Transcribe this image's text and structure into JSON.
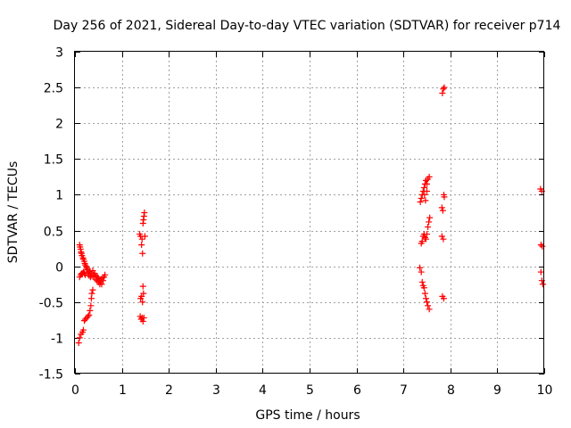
{
  "chart_data": {
    "type": "scatter",
    "title": "Day 256 of 2021, Sidereal Day-to-day VTEC variation (SDTVAR) for receiver p714",
    "xlabel": "GPS time / hours",
    "ylabel": "SDTVAR / TECUs",
    "xlim": [
      0,
      10
    ],
    "ylim": [
      -1.5,
      3
    ],
    "xticks": [
      0,
      1,
      2,
      3,
      4,
      5,
      6,
      7,
      8,
      9,
      10
    ],
    "xtick_labels": [
      "0",
      "1",
      "2",
      "3",
      "4",
      "5",
      "6",
      "7",
      "8",
      "9",
      "10"
    ],
    "yticks": [
      -1.5,
      -1,
      -0.5,
      0,
      0.5,
      1,
      1.5,
      2,
      2.5,
      3
    ],
    "ytick_labels": [
      "-1.5",
      "-1",
      "-0.5",
      "0",
      "0.5",
      "1",
      "1.5",
      "2",
      "2.5",
      "3"
    ],
    "grid": true,
    "marker": "plus",
    "color": "#ff0000",
    "series": [
      {
        "name": "p714",
        "points": [
          [
            0.08,
            -1.07
          ],
          [
            0.1,
            -1.0
          ],
          [
            0.13,
            -0.95
          ],
          [
            0.16,
            -0.92
          ],
          [
            0.18,
            -0.89
          ],
          [
            0.2,
            -0.76
          ],
          [
            0.22,
            -0.74
          ],
          [
            0.25,
            -0.72
          ],
          [
            0.28,
            -0.7
          ],
          [
            0.3,
            -0.68
          ],
          [
            0.32,
            -0.62
          ],
          [
            0.34,
            -0.55
          ],
          [
            0.35,
            -0.45
          ],
          [
            0.36,
            -0.38
          ],
          [
            0.38,
            -0.33
          ],
          [
            0.1,
            0.3
          ],
          [
            0.11,
            0.27
          ],
          [
            0.12,
            0.24
          ],
          [
            0.13,
            0.2
          ],
          [
            0.14,
            0.18
          ],
          [
            0.15,
            0.15
          ],
          [
            0.17,
            0.12
          ],
          [
            0.18,
            0.1
          ],
          [
            0.2,
            0.07
          ],
          [
            0.21,
            0.04
          ],
          [
            0.22,
            0.02
          ],
          [
            0.24,
            0.0
          ],
          [
            0.25,
            -0.02
          ],
          [
            0.27,
            -0.04
          ],
          [
            0.1,
            -0.15
          ],
          [
            0.12,
            -0.12
          ],
          [
            0.14,
            -0.1
          ],
          [
            0.16,
            -0.1
          ],
          [
            0.18,
            -0.08
          ],
          [
            0.2,
            -0.1
          ],
          [
            0.22,
            -0.12
          ],
          [
            0.25,
            -0.05
          ],
          [
            0.28,
            -0.08
          ],
          [
            0.3,
            -0.1
          ],
          [
            0.32,
            -0.07
          ],
          [
            0.35,
            -0.1
          ],
          [
            0.38,
            -0.06
          ],
          [
            0.4,
            -0.12
          ],
          [
            0.42,
            -0.1
          ],
          [
            0.45,
            -0.13
          ],
          [
            0.48,
            -0.15
          ],
          [
            0.5,
            -0.17
          ],
          [
            0.52,
            -0.2
          ],
          [
            0.55,
            -0.22
          ],
          [
            0.57,
            -0.25
          ],
          [
            0.6,
            -0.2
          ],
          [
            0.62,
            -0.15
          ],
          [
            0.64,
            -0.12
          ],
          [
            0.3,
            -0.13
          ],
          [
            0.33,
            -0.15
          ],
          [
            0.36,
            -0.13
          ],
          [
            0.4,
            -0.15
          ],
          [
            0.44,
            -0.18
          ],
          [
            0.47,
            -0.2
          ],
          [
            0.5,
            -0.22
          ],
          [
            0.53,
            -0.25
          ],
          [
            0.56,
            -0.18
          ],
          [
            0.59,
            -0.16
          ],
          [
            1.38,
            0.45
          ],
          [
            1.4,
            0.42
          ],
          [
            1.42,
            0.3
          ],
          [
            1.44,
            0.18
          ],
          [
            1.43,
            0.38
          ],
          [
            1.45,
            0.6
          ],
          [
            1.46,
            0.65
          ],
          [
            1.47,
            0.7
          ],
          [
            1.48,
            0.75
          ],
          [
            1.49,
            0.42
          ],
          [
            1.4,
            -0.45
          ],
          [
            1.42,
            -0.42
          ],
          [
            1.44,
            -0.5
          ],
          [
            1.45,
            -0.28
          ],
          [
            1.46,
            -0.38
          ],
          [
            1.39,
            -0.7
          ],
          [
            1.41,
            -0.74
          ],
          [
            1.43,
            -0.72
          ],
          [
            1.45,
            -0.77
          ],
          [
            1.47,
            -0.72
          ],
          [
            7.35,
            -0.02
          ],
          [
            7.38,
            -0.08
          ],
          [
            7.4,
            -0.22
          ],
          [
            7.42,
            -0.27
          ],
          [
            7.44,
            -0.3
          ],
          [
            7.46,
            -0.38
          ],
          [
            7.48,
            -0.45
          ],
          [
            7.5,
            -0.5
          ],
          [
            7.52,
            -0.55
          ],
          [
            7.55,
            -0.6
          ],
          [
            7.38,
            0.32
          ],
          [
            7.4,
            0.35
          ],
          [
            7.42,
            0.42
          ],
          [
            7.44,
            0.45
          ],
          [
            7.46,
            0.4
          ],
          [
            7.48,
            0.38
          ],
          [
            7.5,
            0.45
          ],
          [
            7.52,
            0.55
          ],
          [
            7.54,
            0.62
          ],
          [
            7.56,
            0.68
          ],
          [
            7.36,
            0.9
          ],
          [
            7.38,
            0.95
          ],
          [
            7.4,
            1.0
          ],
          [
            7.42,
            1.05
          ],
          [
            7.44,
            1.1
          ],
          [
            7.46,
            1.15
          ],
          [
            7.48,
            1.2
          ],
          [
            7.5,
            1.15
          ],
          [
            7.52,
            1.22
          ],
          [
            7.55,
            1.25
          ],
          [
            7.45,
            1.0
          ],
          [
            7.47,
            0.92
          ],
          [
            7.5,
            1.05
          ],
          [
            7.82,
            0.82
          ],
          [
            7.84,
            0.78
          ],
          [
            7.86,
            1.0
          ],
          [
            7.87,
            0.97
          ],
          [
            7.82,
            0.42
          ],
          [
            7.85,
            0.38
          ],
          [
            7.83,
            -0.42
          ],
          [
            7.86,
            -0.45
          ],
          [
            7.83,
            2.42
          ],
          [
            7.85,
            2.48
          ],
          [
            7.87,
            2.5
          ],
          [
            9.92,
            1.08
          ],
          [
            9.95,
            1.05
          ],
          [
            9.93,
            0.3
          ],
          [
            9.96,
            0.28
          ],
          [
            9.93,
            -0.08
          ],
          [
            9.95,
            -0.2
          ],
          [
            9.97,
            -0.25
          ]
        ]
      }
    ]
  }
}
